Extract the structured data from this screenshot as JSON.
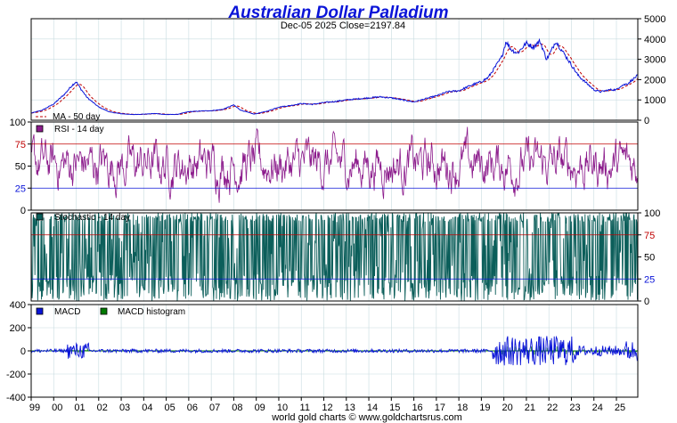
{
  "chart_data": {
    "type": "line",
    "title": "Australian Dollar Palladium",
    "subtitle": "Dec-05  2025   Close=2197.84",
    "footer": "world gold charts © www.goldchartsrus.com",
    "x_tick_labels": [
      "99",
      "00",
      "01",
      "02",
      "03",
      "04",
      "05",
      "06",
      "07",
      "08",
      "09",
      "10",
      "11",
      "12",
      "13",
      "14",
      "15",
      "16",
      "17",
      "18",
      "19",
      "20",
      "21",
      "22",
      "23",
      "24",
      "25"
    ],
    "colors": {
      "price": "#0a14d8",
      "ma": "#c00000",
      "rsi": "#8b1a8b",
      "stoch": "#0b5e5a",
      "macd": "#0a14d8",
      "hist": "#007a00",
      "grid": "#c8dce0"
    },
    "panels": [
      {
        "name": "price",
        "ylim": [
          0,
          5000
        ],
        "y_ticks": [
          "5000",
          "4000",
          "3000",
          "2000",
          "1000",
          "0"
        ],
        "legend": [
          {
            "label": "MA - 50 day",
            "color": "#c00000"
          }
        ],
        "series": {
          "x": [
            1999.0,
            1999.5,
            2000.0,
            2000.5,
            2000.8,
            2001.0,
            2001.2,
            2001.5,
            2002.0,
            2002.5,
            2003.0,
            2003.5,
            2004.0,
            2004.5,
            2005.0,
            2005.5,
            2006.0,
            2006.5,
            2007.0,
            2007.5,
            2008.0,
            2008.3,
            2008.9,
            2009.5,
            2010.0,
            2010.5,
            2011.0,
            2011.5,
            2012.0,
            2012.5,
            2013.0,
            2013.5,
            2014.0,
            2014.5,
            2015.0,
            2015.5,
            2016.0,
            2016.5,
            2017.0,
            2017.5,
            2018.0,
            2018.5,
            2019.0,
            2019.3,
            2019.6,
            2019.9,
            2020.1,
            2020.3,
            2020.6,
            2021.0,
            2021.3,
            2021.6,
            2021.9,
            2022.1,
            2022.3,
            2022.6,
            2022.9,
            2023.3,
            2023.7,
            2024.0,
            2024.3,
            2024.7,
            2025.0,
            2025.2,
            2025.5,
            2025.93
          ],
          "y": [
            350,
            500,
            800,
            1300,
            1700,
            1900,
            1550,
            1100,
            650,
            400,
            320,
            280,
            300,
            330,
            280,
            290,
            420,
            450,
            470,
            530,
            750,
            500,
            300,
            450,
            650,
            720,
            820,
            780,
            870,
            920,
            1000,
            1050,
            1100,
            1150,
            1100,
            1000,
            900,
            1050,
            1200,
            1400,
            1450,
            1700,
            1900,
            2100,
            2600,
            3100,
            3900,
            3500,
            3300,
            3800,
            3600,
            3900,
            3000,
            3400,
            3900,
            3400,
            2900,
            2200,
            1800,
            1500,
            1400,
            1500,
            1500,
            1700,
            1800,
            2197.84
          ]
        }
      },
      {
        "name": "rsi",
        "label": "RSI - 14 day",
        "ylim": [
          0,
          100
        ],
        "y_ticks": [
          "100",
          "75",
          "50",
          "25",
          "0"
        ],
        "ref_lines": [
          75,
          25
        ]
      },
      {
        "name": "stochastic",
        "label": "Stochastic - 14 day",
        "ylim": [
          0,
          100
        ],
        "y_ticks": [
          "100",
          "75",
          "50",
          "25",
          "0"
        ],
        "ref_lines": [
          75,
          25
        ]
      },
      {
        "name": "macd",
        "ylim": [
          -400,
          400
        ],
        "y_ticks": [
          "400",
          "200",
          "0",
          "-200",
          "-400"
        ],
        "legend": [
          {
            "label": "MACD",
            "color": "#0a14d8"
          },
          {
            "label": "MACD histogram",
            "color": "#007a00"
          }
        ]
      }
    ]
  }
}
